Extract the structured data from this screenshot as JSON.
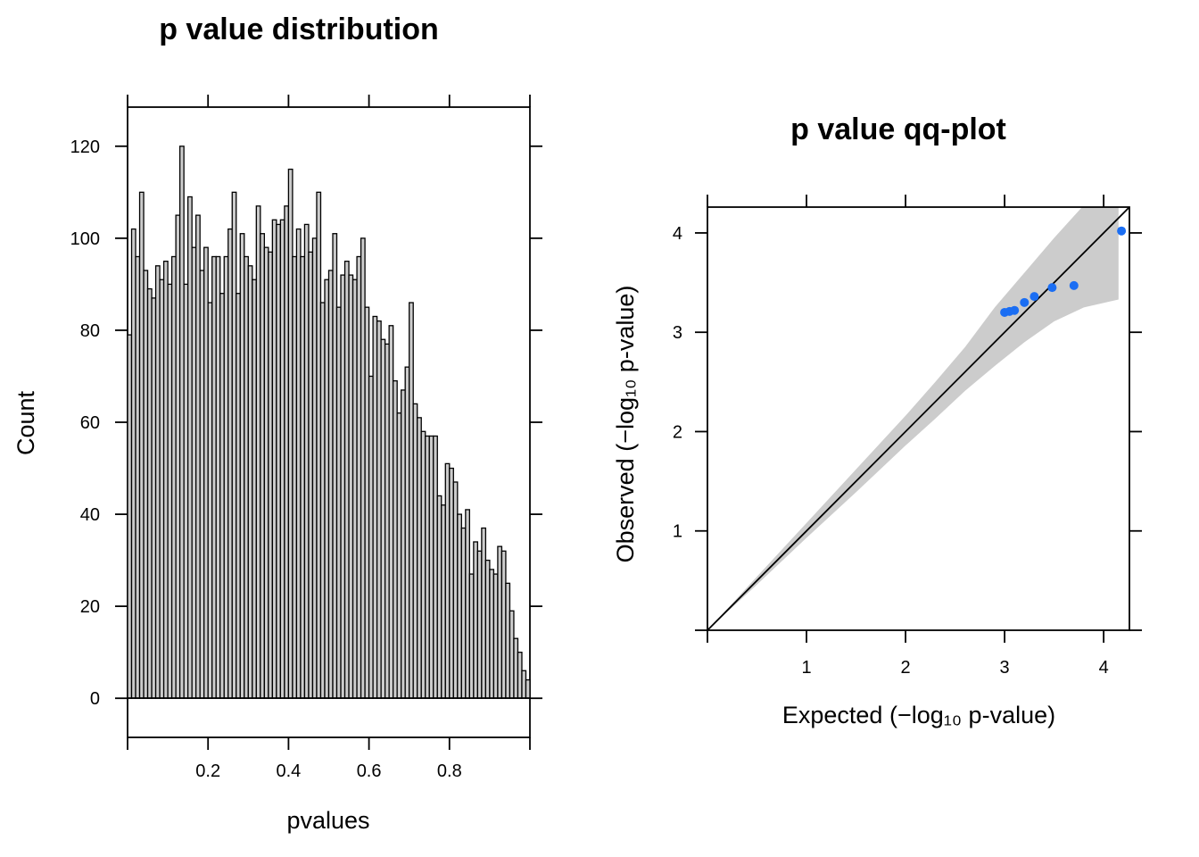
{
  "chart_data": [
    {
      "type": "bar",
      "title": "p value distribution",
      "xlabel": "pvalues",
      "ylabel": "Count",
      "xlim": [
        0,
        1
      ],
      "ylim": [
        -8.5,
        128.5
      ],
      "xticks": [
        0.2,
        0.4,
        0.6,
        0.8
      ],
      "xtick_labels": [
        "0.2",
        "0.4",
        "0.6",
        "0.8"
      ],
      "yticks": [
        0,
        20,
        40,
        60,
        80,
        100,
        120
      ],
      "ytick_labels": [
        "0",
        "20",
        "40",
        "60",
        "80",
        "100",
        "120"
      ],
      "bin_width": 0.01,
      "bin_starts": [
        0.0,
        0.01,
        0.02,
        0.03,
        0.04,
        0.05,
        0.06,
        0.07,
        0.08,
        0.09,
        0.1,
        0.11,
        0.12,
        0.13,
        0.14,
        0.15,
        0.16,
        0.17,
        0.18,
        0.19,
        0.2,
        0.21,
        0.22,
        0.23,
        0.24,
        0.25,
        0.26,
        0.27,
        0.28,
        0.29,
        0.3,
        0.31,
        0.32,
        0.33,
        0.34,
        0.35,
        0.36,
        0.37,
        0.38,
        0.39,
        0.4,
        0.41,
        0.42,
        0.43,
        0.44,
        0.45,
        0.46,
        0.47,
        0.48,
        0.49,
        0.5,
        0.51,
        0.52,
        0.53,
        0.54,
        0.55,
        0.56,
        0.57,
        0.58,
        0.59,
        0.6,
        0.61,
        0.62,
        0.63,
        0.64,
        0.65,
        0.66,
        0.67,
        0.68,
        0.69,
        0.7,
        0.71,
        0.72,
        0.73,
        0.74,
        0.75,
        0.76,
        0.77,
        0.78,
        0.79,
        0.8,
        0.81,
        0.82,
        0.83,
        0.84,
        0.85,
        0.86,
        0.87,
        0.88,
        0.89,
        0.9,
        0.91,
        0.92,
        0.93,
        0.94,
        0.95,
        0.96,
        0.97,
        0.98,
        0.99
      ],
      "values": [
        79,
        102,
        96,
        110,
        93,
        89,
        87,
        94,
        91,
        95,
        90,
        96,
        105,
        120,
        90,
        109,
        98,
        105,
        93,
        98,
        86,
        96,
        96,
        88,
        96,
        102,
        110,
        88,
        101,
        96,
        94,
        91,
        107,
        101,
        98,
        97,
        104,
        103,
        104,
        107,
        115,
        96,
        102,
        96,
        103,
        97,
        100,
        110,
        86,
        91,
        93,
        101,
        85,
        92,
        95,
        92,
        91,
        96,
        100,
        85,
        70,
        83,
        82,
        78,
        77,
        81,
        69,
        62,
        67,
        72,
        86,
        64,
        61,
        58,
        57,
        57,
        57,
        44,
        42,
        51,
        50,
        47,
        40,
        37,
        41,
        27,
        34,
        32,
        37,
        30,
        28,
        27,
        33,
        32,
        25,
        19,
        13,
        10,
        6,
        4,
        1
      ]
    },
    {
      "type": "scatter",
      "title": "p value qq-plot",
      "xlabel": "Expected (−log₁₀ p-value)",
      "ylabel": "Observed (−log₁₀ p-value)",
      "xlim": [
        0,
        4.26
      ],
      "ylim": [
        0,
        4.26
      ],
      "xticks": [
        1,
        2,
        3,
        4
      ],
      "xtick_labels": [
        "1",
        "2",
        "3",
        "4"
      ],
      "yticks": [
        1,
        2,
        3,
        4
      ],
      "yticks_labels": [
        "1",
        "2",
        "3",
        "4"
      ],
      "ytick_labels": [
        "1",
        "2",
        "3",
        "4"
      ],
      "reference_line": {
        "from": [
          0,
          0
        ],
        "to": [
          4.26,
          4.26
        ]
      },
      "confidence_band": {
        "x": [
          0.0,
          0.5,
          1.0,
          1.5,
          2.0,
          2.3,
          2.6,
          2.9,
          3.2,
          3.5,
          3.8,
          4.15
        ],
        "lower": [
          0.0,
          0.46,
          0.93,
          1.39,
          1.86,
          2.13,
          2.41,
          2.66,
          2.9,
          3.11,
          3.25,
          3.33
        ],
        "upper": [
          0.0,
          0.54,
          1.08,
          1.62,
          2.16,
          2.5,
          2.85,
          3.25,
          3.6,
          3.95,
          4.28,
          4.28
        ]
      },
      "points": {
        "x": [
          3.0,
          3.05,
          3.1,
          3.2,
          3.3,
          3.48,
          3.7,
          4.18
        ],
        "y": [
          3.2,
          3.21,
          3.22,
          3.3,
          3.36,
          3.45,
          3.47,
          4.02
        ]
      },
      "point_color": "#1b6ef3",
      "band_color": "#cccccc"
    }
  ]
}
